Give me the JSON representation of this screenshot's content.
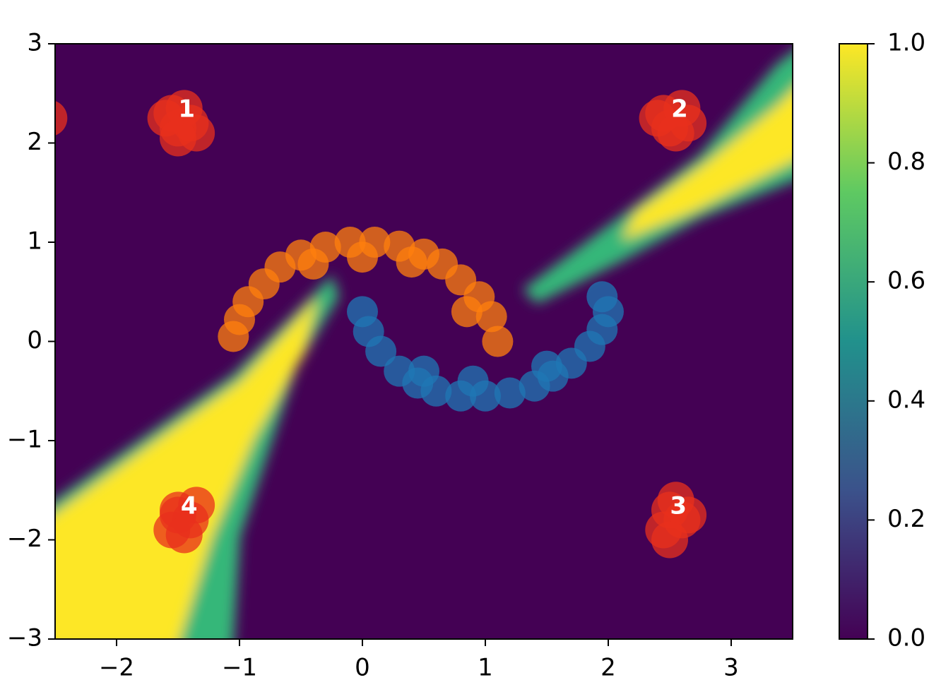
{
  "chart_data": {
    "type": "scatter",
    "xlim": [
      -2.5,
      3.5
    ],
    "ylim": [
      -3,
      3
    ],
    "xticks": [
      {
        "value": -2,
        "label": "−2"
      },
      {
        "value": -1,
        "label": "−1"
      },
      0,
      1,
      2,
      3
    ],
    "yticks": [
      {
        "value": -3,
        "label": "−3"
      },
      {
        "value": -2,
        "label": "−2"
      },
      {
        "value": -1,
        "label": "−1"
      },
      0,
      1,
      2,
      3
    ],
    "series": [
      {
        "color": "#ff7f0e",
        "x": [
          1.1,
          1.05,
          0.95,
          0.8,
          0.65,
          0.5,
          0.3,
          0.1,
          -0.1,
          -0.3,
          -0.5,
          -0.67,
          -0.8,
          -0.93,
          -1.0,
          -1.05,
          0.0,
          0.4,
          -0.4,
          0.85
        ],
        "values": [
          0.0,
          0.25,
          0.45,
          0.62,
          0.78,
          0.88,
          0.96,
          1.0,
          1.0,
          0.95,
          0.87,
          0.75,
          0.58,
          0.4,
          0.22,
          0.05,
          0.85,
          0.8,
          0.78,
          0.3
        ]
      },
      {
        "color": "#1f77b4",
        "x": [
          0.0,
          0.05,
          0.15,
          0.3,
          0.45,
          0.6,
          0.8,
          1.0,
          1.2,
          1.4,
          1.55,
          1.7,
          1.85,
          1.95,
          2.0,
          1.95,
          0.9,
          1.5,
          0.5
        ],
        "values": [
          0.3,
          0.1,
          -0.1,
          -0.3,
          -0.42,
          -0.5,
          -0.55,
          -0.55,
          -0.52,
          -0.45,
          -0.35,
          -0.22,
          -0.05,
          0.12,
          0.3,
          0.45,
          -0.4,
          -0.25,
          -0.3
        ]
      },
      {
        "color": "#e8301c",
        "x": [
          -1.55,
          -1.45,
          -1.5,
          -1.4,
          -1.6,
          -1.35,
          -1.5,
          -2.55,
          2.45,
          2.6,
          2.5,
          2.65,
          2.4,
          2.55,
          2.5,
          2.6,
          2.45,
          2.55,
          2.65,
          2.5,
          -1.5,
          -1.4,
          -1.55,
          -1.35,
          -1.45,
          -1.5
        ],
        "values": [
          2.3,
          2.35,
          2.15,
          2.2,
          2.25,
          2.1,
          2.05,
          2.25,
          2.3,
          2.35,
          2.15,
          2.2,
          2.25,
          2.1,
          -1.7,
          -1.8,
          -1.9,
          -1.6,
          -1.75,
          -2.0,
          -1.7,
          -1.8,
          -1.9,
          -1.65,
          -1.95,
          -1.75
        ]
      }
    ],
    "annotations": [
      {
        "text": "1",
        "x": -1.43,
        "y": 2.33
      },
      {
        "text": "2",
        "x": 2.58,
        "y": 2.33
      },
      {
        "text": "3",
        "x": 2.57,
        "y": -1.67
      },
      {
        "text": "4",
        "x": -1.41,
        "y": -1.67
      }
    ],
    "colorbar": {
      "lim": [
        0,
        1
      ],
      "ticks": [
        {
          "value": 0,
          "label": "0.0"
        },
        {
          "value": 0.2,
          "label": "0.2"
        },
        {
          "value": 0.4,
          "label": "0.4"
        },
        {
          "value": 0.6,
          "label": "0.6"
        },
        {
          "value": 0.8,
          "label": "0.8"
        },
        {
          "value": 1,
          "label": "1.0"
        }
      ]
    }
  }
}
